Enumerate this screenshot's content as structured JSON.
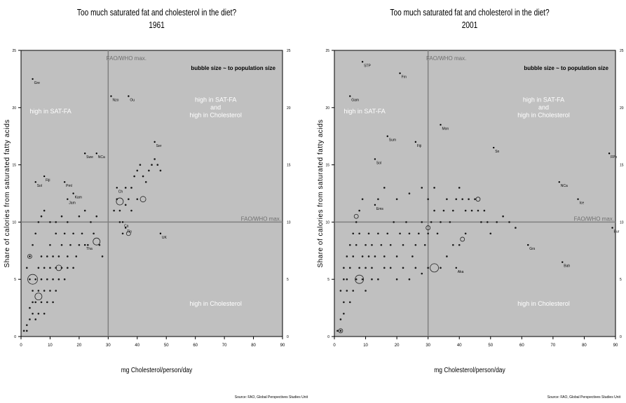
{
  "panels": [
    {
      "title": "Too much saturated fat and cholesterol in the diet?",
      "year": "1961",
      "xlabel": "mg Cholesterol/person/day",
      "ylabel": "Share of calories from saturated fatty acids",
      "source": "Source: FAO, Global Perspectives Studies Unit"
    },
    {
      "title": "Too much saturated fat and cholesterol in the diet?",
      "year": "2001",
      "xlabel": "mg Cholesterol/person/day",
      "ylabel": "Share of calories from saturated fatty acids",
      "source": "Source: FAO, Global Perspectives Studies Unit"
    }
  ],
  "colors": {
    "plot_bg": "#c0c0c0",
    "frame": "#000000",
    "refline": "#808080",
    "text_in_plot": "#ffffff"
  },
  "chart_data": [
    {
      "type": "scatter",
      "title": "Too much saturated fat and cholesterol in the diet?",
      "subtitle": "1961",
      "xlabel": "mg Cholesterol/person/day",
      "ylabel": "Share of calories from saturated fatty acids",
      "xlim": [
        0,
        90
      ],
      "ylim": [
        0,
        25
      ],
      "xticks": [
        0,
        10,
        20,
        30,
        40,
        50,
        60,
        70,
        80,
        90
      ],
      "yticks": [
        0,
        5,
        10,
        15,
        20,
        25
      ],
      "ref_x": 30,
      "ref_y": 10,
      "ref_x_label": "FAO/WHO max.",
      "ref_y_label": "FAO/WHO max.",
      "annotations": {
        "bubble": "bubble size ~ to population size",
        "upper_left": "high in SAT-FA",
        "upper_right": [
          "high in SAT-FA",
          "and",
          "high in Cholesterol"
        ],
        "lower_right": "high in Cholesterol"
      },
      "labeled_points": [
        {
          "label": "Gre",
          "x": 4,
          "y": 22.5
        },
        {
          "label": "Nzo",
          "x": 31,
          "y": 21
        },
        {
          "label": "Ou",
          "x": 37,
          "y": 21
        },
        {
          "label": "Ser",
          "x": 46,
          "y": 17
        },
        {
          "label": "Swe",
          "x": 22,
          "y": 16
        },
        {
          "label": "NCa",
          "x": 26,
          "y": 16
        },
        {
          "label": "Fiji",
          "x": 8,
          "y": 14
        },
        {
          "label": "Sol",
          "x": 5,
          "y": 13.5
        },
        {
          "label": "Pml",
          "x": 15,
          "y": 13.5
        },
        {
          "label": "Kam",
          "x": 18,
          "y": 12.5
        },
        {
          "label": "Jam",
          "x": 16,
          "y": 12
        },
        {
          "label": "Ch",
          "x": 33,
          "y": 13
        },
        {
          "label": "Ca",
          "x": 35,
          "y": 10
        },
        {
          "label": "Tin",
          "x": 36,
          "y": 9.5
        },
        {
          "label": "Tha",
          "x": 22,
          "y": 8
        },
        {
          "label": "UK",
          "x": 48,
          "y": 9
        }
      ],
      "cluster_points": [
        [
          1,
          0.5
        ],
        [
          2,
          0.5
        ],
        [
          2,
          1
        ],
        [
          3,
          1.5
        ],
        [
          3,
          2.5
        ],
        [
          4,
          3
        ],
        [
          4,
          4
        ],
        [
          5,
          3
        ],
        [
          5,
          5
        ],
        [
          6,
          4
        ],
        [
          6,
          6
        ],
        [
          7,
          3
        ],
        [
          7,
          5
        ],
        [
          7,
          7
        ],
        [
          8,
          4
        ],
        [
          8,
          6
        ],
        [
          9,
          5
        ],
        [
          9,
          7
        ],
        [
          10,
          6
        ],
        [
          10,
          8
        ],
        [
          11,
          5
        ],
        [
          11,
          7
        ],
        [
          12,
          6
        ],
        [
          12,
          9
        ],
        [
          13,
          7
        ],
        [
          14,
          6
        ],
        [
          14,
          8
        ],
        [
          15,
          9
        ],
        [
          16,
          7
        ],
        [
          17,
          8
        ],
        [
          18,
          9
        ],
        [
          19,
          7
        ],
        [
          20,
          8
        ],
        [
          21,
          9
        ],
        [
          23,
          8
        ],
        [
          25,
          9
        ],
        [
          27,
          8
        ],
        [
          28,
          7
        ],
        [
          3,
          7
        ],
        [
          4,
          8
        ],
        [
          5,
          9
        ],
        [
          6,
          10
        ],
        [
          2,
          6
        ],
        [
          3,
          5
        ],
        [
          4,
          2
        ],
        [
          5,
          1.5
        ],
        [
          6,
          2
        ],
        [
          8,
          2
        ],
        [
          9,
          3
        ],
        [
          10,
          4
        ],
        [
          11,
          3
        ],
        [
          12,
          4
        ],
        [
          13,
          5
        ],
        [
          15,
          5
        ],
        [
          16,
          6
        ],
        [
          18,
          6
        ],
        [
          7,
          10.5
        ],
        [
          8,
          11
        ],
        [
          10,
          10
        ],
        [
          12,
          10
        ],
        [
          14,
          10.5
        ],
        [
          16,
          10
        ],
        [
          20,
          10.5
        ],
        [
          22,
          11
        ],
        [
          24,
          10
        ],
        [
          26,
          10.5
        ],
        [
          32,
          11
        ],
        [
          33,
          12
        ],
        [
          34,
          11
        ],
        [
          36,
          13
        ],
        [
          37,
          12
        ],
        [
          38,
          13
        ],
        [
          39,
          14
        ],
        [
          40,
          14.5
        ],
        [
          41,
          15
        ],
        [
          42,
          14
        ],
        [
          43,
          13.5
        ],
        [
          44,
          14.5
        ],
        [
          45,
          15
        ],
        [
          46,
          15.5
        ],
        [
          47,
          15
        ],
        [
          48,
          14.5
        ],
        [
          40,
          12
        ],
        [
          38,
          11
        ],
        [
          36,
          11.5
        ],
        [
          34,
          10
        ],
        [
          35,
          9
        ]
      ],
      "bubbles": [
        {
          "x": 4,
          "y": 5,
          "r": 7
        },
        {
          "x": 6,
          "y": 3.5,
          "r": 5
        },
        {
          "x": 13,
          "y": 6,
          "r": 4
        },
        {
          "x": 26,
          "y": 8.3,
          "r": 5
        },
        {
          "x": 34,
          "y": 11.8,
          "r": 5
        },
        {
          "x": 42,
          "y": 12,
          "r": 4
        },
        {
          "x": 3,
          "y": 7,
          "r": 3
        },
        {
          "x": 37,
          "y": 9,
          "r": 3
        }
      ]
    },
    {
      "type": "scatter",
      "title": "Too much saturated fat and cholesterol in the diet?",
      "subtitle": "2001",
      "xlabel": "mg Cholesterol/person/day",
      "ylabel": "Share of calories from saturated fatty acids",
      "xlim": [
        0,
        90
      ],
      "ylim": [
        0,
        25
      ],
      "xticks": [
        0,
        10,
        20,
        30,
        40,
        50,
        60,
        70,
        80,
        90
      ],
      "yticks": [
        0,
        5,
        10,
        15,
        20,
        25
      ],
      "ref_x": 30,
      "ref_y": 10,
      "ref_x_label": "FAO/WHO max.",
      "ref_y_label": "FAO/WHO max.",
      "annotations": {
        "bubble": "bubble size ~ to population size",
        "upper_left": "high in SAT-FA",
        "upper_right": [
          "high in SAT-FA",
          "and",
          "high in Cholesterol"
        ],
        "lower_right": "high in Cholesterol"
      },
      "labeled_points": [
        {
          "label": "STP",
          "x": 9,
          "y": 24
        },
        {
          "label": "Frn",
          "x": 21,
          "y": 23
        },
        {
          "label": "Gam",
          "x": 5,
          "y": 21
        },
        {
          "label": "Sum",
          "x": 17,
          "y": 17.5
        },
        {
          "label": "Fiji",
          "x": 26,
          "y": 17
        },
        {
          "label": "Mon",
          "x": 34,
          "y": 18.5
        },
        {
          "label": "Sol",
          "x": 13,
          "y": 15.5
        },
        {
          "label": "Sn",
          "x": 51,
          "y": 16.5
        },
        {
          "label": "FPo",
          "x": 88,
          "y": 16
        },
        {
          "label": "NCa",
          "x": 72,
          "y": 13.5
        },
        {
          "label": "Ice",
          "x": 78,
          "y": 12
        },
        {
          "label": "Bur",
          "x": 89,
          "y": 9.5
        },
        {
          "label": "Grs",
          "x": 62,
          "y": 8
        },
        {
          "label": "Bah",
          "x": 73,
          "y": 6.5
        },
        {
          "label": "Ems",
          "x": 13,
          "y": 11.5
        },
        {
          "label": "Aka",
          "x": 39,
          "y": 6
        }
      ],
      "cluster_points": [
        [
          1,
          0.5
        ],
        [
          2,
          0.5
        ],
        [
          2,
          1.5
        ],
        [
          3,
          2
        ],
        [
          3,
          3
        ],
        [
          4,
          4
        ],
        [
          4,
          5
        ],
        [
          5,
          3
        ],
        [
          5,
          6
        ],
        [
          6,
          4
        ],
        [
          6,
          7
        ],
        [
          7,
          5
        ],
        [
          7,
          8
        ],
        [
          8,
          6
        ],
        [
          8,
          9
        ],
        [
          9,
          5
        ],
        [
          9,
          7
        ],
        [
          10,
          6
        ],
        [
          10,
          8
        ],
        [
          11,
          7
        ],
        [
          11,
          9
        ],
        [
          12,
          6
        ],
        [
          12,
          8
        ],
        [
          13,
          7
        ],
        [
          14,
          9
        ],
        [
          15,
          8
        ],
        [
          16,
          7
        ],
        [
          17,
          9
        ],
        [
          18,
          8
        ],
        [
          19,
          10
        ],
        [
          20,
          7
        ],
        [
          21,
          9
        ],
        [
          22,
          8
        ],
        [
          23,
          10
        ],
        [
          24,
          9
        ],
        [
          25,
          7
        ],
        [
          26,
          8
        ],
        [
          27,
          9
        ],
        [
          28,
          10
        ],
        [
          29,
          8
        ],
        [
          30,
          9
        ],
        [
          31,
          10
        ],
        [
          32,
          11
        ],
        [
          33,
          9
        ],
        [
          34,
          10
        ],
        [
          35,
          11
        ],
        [
          36,
          12
        ],
        [
          37,
          10
        ],
        [
          38,
          11
        ],
        [
          39,
          12
        ],
        [
          40,
          13
        ],
        [
          41,
          12
        ],
        [
          42,
          11
        ],
        [
          43,
          12
        ],
        [
          44,
          11
        ],
        [
          45,
          12
        ],
        [
          46,
          11
        ],
        [
          47,
          10
        ],
        [
          48,
          11
        ],
        [
          49,
          10
        ],
        [
          50,
          9
        ],
        [
          52,
          10
        ],
        [
          54,
          10.5
        ],
        [
          56,
          10
        ],
        [
          58,
          9.5
        ],
        [
          3,
          6
        ],
        [
          4,
          7
        ],
        [
          5,
          8
        ],
        [
          6,
          9
        ],
        [
          7,
          10
        ],
        [
          8,
          11
        ],
        [
          9,
          12
        ],
        [
          2,
          4
        ],
        [
          3,
          5
        ],
        [
          10,
          4
        ],
        [
          12,
          5
        ],
        [
          14,
          5
        ],
        [
          16,
          6
        ],
        [
          18,
          6
        ],
        [
          20,
          5
        ],
        [
          22,
          6
        ],
        [
          24,
          5
        ],
        [
          26,
          6
        ],
        [
          28,
          5.5
        ],
        [
          30,
          6
        ],
        [
          34,
          6
        ],
        [
          36,
          7
        ],
        [
          38,
          8
        ],
        [
          40,
          8
        ],
        [
          42,
          9
        ],
        [
          14,
          12
        ],
        [
          16,
          13
        ],
        [
          20,
          12
        ],
        [
          24,
          12.5
        ],
        [
          28,
          13
        ],
        [
          30,
          12
        ],
        [
          32,
          13
        ]
      ],
      "bubbles": [
        {
          "x": 8,
          "y": 5,
          "r": 6
        },
        {
          "x": 7,
          "y": 10.5,
          "r": 3
        },
        {
          "x": 32,
          "y": 6,
          "r": 6
        },
        {
          "x": 46,
          "y": 12,
          "r": 3
        },
        {
          "x": 41,
          "y": 8.5,
          "r": 3
        },
        {
          "x": 30,
          "y": 9.5,
          "r": 3
        },
        {
          "x": 2,
          "y": 0.5,
          "r": 3
        }
      ]
    }
  ]
}
